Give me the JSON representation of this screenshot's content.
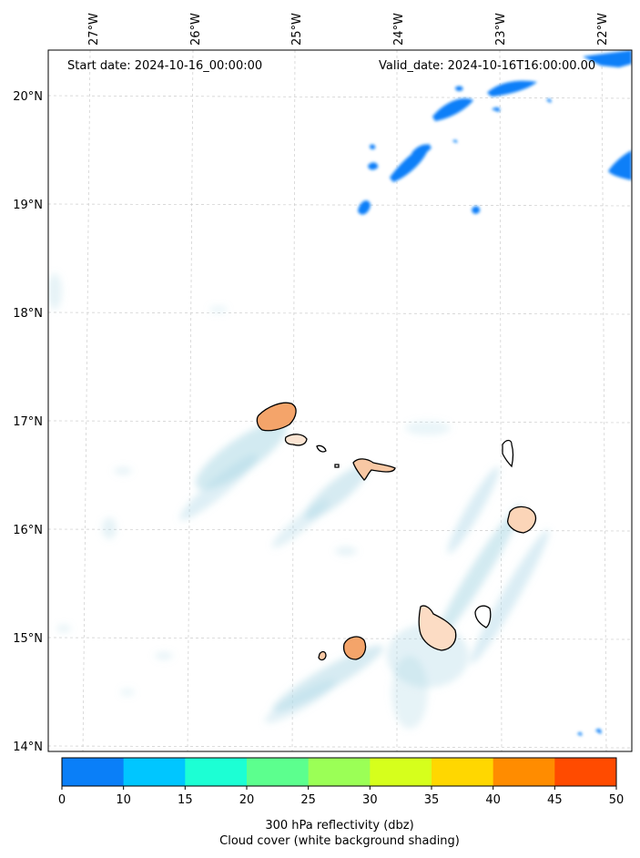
{
  "header": {
    "start_date": "Start date: 2024-10-16_00:00:00",
    "valid_date": "Valid_date: 2024-10-16T16:00:00.00"
  },
  "axes": {
    "lon_labels": [
      "27°W",
      "26°W",
      "25°W",
      "24°W",
      "23°W",
      "22°W"
    ],
    "lat_labels": [
      "20°N",
      "19°N",
      "18°N",
      "17°N",
      "16°N",
      "15°N",
      "14°N"
    ]
  },
  "colorbar": {
    "ticks": [
      "0",
      "10",
      "15",
      "20",
      "25",
      "30",
      "35",
      "40",
      "45",
      "50"
    ],
    "colors": [
      "#0a7ff8",
      "#00c6ff",
      "#1cffd4",
      "#5cff8e",
      "#9bff56",
      "#d6ff1c",
      "#ffd700",
      "#ff8c00",
      "#ff4b00"
    ],
    "label_line1": "300 hPa reflectivity (dbz)",
    "label_line2": "Cloud cover (white background shading)"
  },
  "colors": {
    "reflectivity_blue": "#0a7ff8",
    "cloud_shading": "#add8e6",
    "island_fill": "#f4a46a",
    "gridline": "#cccccc"
  }
}
